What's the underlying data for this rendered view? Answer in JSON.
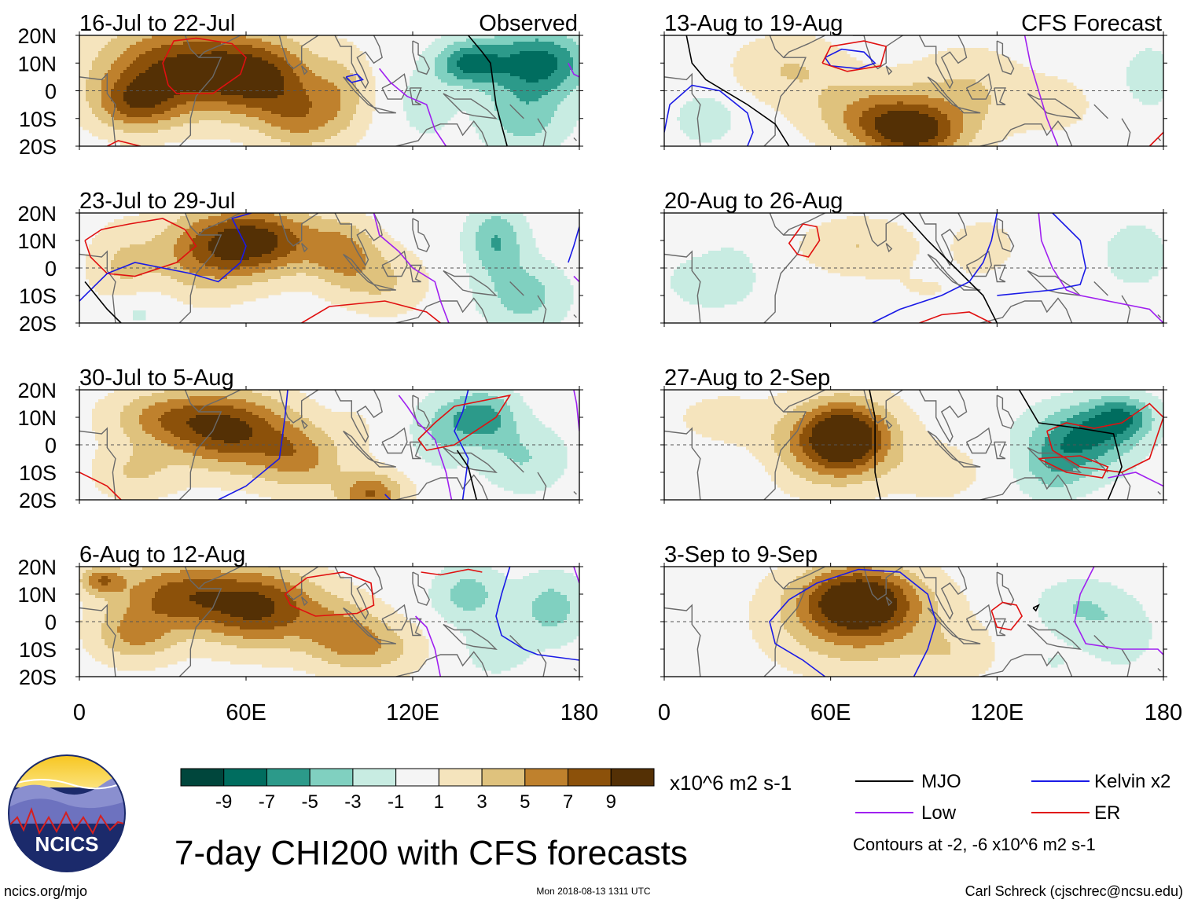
{
  "chart_data": {
    "type": "heatmap",
    "title": "7-day CHI200 with CFS forecasts",
    "units": "x10^6 m2 s-1",
    "x_axis": {
      "ticks": [
        "0",
        "60E",
        "120E",
        "180"
      ],
      "range": [
        0,
        180
      ]
    },
    "y_axis": {
      "ticks": [
        "20N",
        "10N",
        "0",
        "10S",
        "20S"
      ],
      "range": [
        -20,
        20
      ]
    },
    "colorbar": {
      "labels": [
        "-9",
        "-7",
        "-5",
        "-3",
        "-1",
        "1",
        "3",
        "5",
        "7",
        "9"
      ],
      "colors": [
        "#00463c",
        "#006d5f",
        "#2c9a8a",
        "#80d0c0",
        "#c8ece2",
        "#f5f5f5",
        "#f5e4bd",
        "#dfc27d",
        "#bf812d",
        "#8c510a",
        "#543005"
      ]
    },
    "panels": [
      {
        "title": "16-Jul to 22-Jul",
        "tag": "Observed",
        "blobs": [
          [
            35,
            8,
            28,
            16,
            9
          ],
          [
            65,
            5,
            20,
            14,
            8
          ],
          [
            20,
            -5,
            15,
            10,
            6
          ],
          [
            80,
            -10,
            15,
            12,
            5
          ],
          [
            95,
            0,
            10,
            15,
            3
          ],
          [
            125,
            -5,
            10,
            12,
            -2
          ],
          [
            140,
            10,
            12,
            8,
            -7
          ],
          [
            165,
            10,
            18,
            12,
            -8
          ],
          [
            160,
            -10,
            15,
            12,
            -4
          ]
        ]
      },
      {
        "title": "23-Jul to 29-Jul",
        "tag": "",
        "blobs": [
          [
            65,
            10,
            22,
            12,
            9
          ],
          [
            45,
            5,
            20,
            15,
            5
          ],
          [
            15,
            0,
            12,
            15,
            3
          ],
          [
            95,
            5,
            12,
            12,
            5
          ],
          [
            110,
            -5,
            15,
            12,
            3
          ],
          [
            150,
            10,
            10,
            12,
            -5
          ],
          [
            160,
            -10,
            15,
            12,
            -4
          ],
          [
            20,
            -15,
            12,
            8,
            -2
          ]
        ]
      },
      {
        "title": "30-Jul to 5-Aug",
        "tag": "",
        "blobs": [
          [
            55,
            5,
            22,
            14,
            9
          ],
          [
            30,
            10,
            20,
            10,
            5
          ],
          [
            80,
            -5,
            15,
            12,
            5
          ],
          [
            105,
            -18,
            12,
            8,
            7
          ],
          [
            20,
            -10,
            15,
            10,
            3
          ],
          [
            145,
            10,
            12,
            10,
            -6
          ],
          [
            130,
            5,
            10,
            12,
            -3
          ],
          [
            160,
            -5,
            15,
            12,
            -3
          ],
          [
            100,
            5,
            8,
            12,
            1
          ]
        ]
      },
      {
        "title": "6-Aug to 12-Aug",
        "tag": "",
        "blobs": [
          [
            65,
            5,
            22,
            14,
            9
          ],
          [
            35,
            10,
            22,
            12,
            7
          ],
          [
            20,
            -5,
            15,
            10,
            5
          ],
          [
            95,
            -5,
            15,
            12,
            5
          ],
          [
            110,
            -10,
            15,
            10,
            3
          ],
          [
            140,
            10,
            12,
            10,
            -4
          ],
          [
            170,
            5,
            12,
            12,
            -4
          ],
          [
            150,
            -10,
            12,
            10,
            -2
          ],
          [
            8,
            15,
            8,
            5,
            6
          ]
        ]
      },
      {
        "title": "13-Aug to 19-Aug",
        "tag": "CFS Forecast",
        "blobs": [
          [
            90,
            -15,
            18,
            10,
            9
          ],
          [
            75,
            -8,
            22,
            12,
            5
          ],
          [
            45,
            8,
            20,
            12,
            3
          ],
          [
            110,
            0,
            20,
            15,
            3
          ],
          [
            140,
            -5,
            15,
            10,
            2
          ],
          [
            15,
            -10,
            12,
            10,
            -2
          ],
          [
            175,
            5,
            10,
            12,
            -2
          ]
        ]
      },
      {
        "title": "20-Aug to 26-Aug",
        "tag": "",
        "blobs": [
          [
            70,
            8,
            20,
            10,
            3
          ],
          [
            115,
            8,
            12,
            10,
            2
          ],
          [
            15,
            -5,
            15,
            10,
            -2
          ],
          [
            170,
            5,
            10,
            10,
            -3
          ],
          [
            25,
            0,
            10,
            12,
            -1
          ],
          [
            95,
            -8,
            20,
            8,
            1
          ]
        ]
      },
      {
        "title": "27-Aug to 2-Sep",
        "tag": "",
        "blobs": [
          [
            65,
            3,
            15,
            12,
            9
          ],
          [
            60,
            0,
            25,
            16,
            5
          ],
          [
            20,
            10,
            15,
            8,
            2
          ],
          [
            100,
            -10,
            15,
            10,
            2
          ],
          [
            150,
            2,
            18,
            12,
            -7
          ],
          [
            165,
            10,
            12,
            8,
            -6
          ],
          [
            140,
            -10,
            12,
            10,
            -3
          ],
          [
            30,
            -10,
            10,
            8,
            -1
          ]
        ]
      },
      {
        "title": "3-Sep to 9-Sep",
        "tag": "",
        "blobs": [
          [
            70,
            8,
            20,
            12,
            9
          ],
          [
            70,
            0,
            30,
            18,
            5
          ],
          [
            105,
            -12,
            15,
            10,
            2
          ],
          [
            150,
            5,
            15,
            10,
            -3
          ],
          [
            165,
            -5,
            12,
            12,
            -2
          ],
          [
            140,
            -15,
            12,
            8,
            -1
          ]
        ]
      }
    ],
    "legend": {
      "entries": [
        {
          "label": "MJO",
          "color": "#000000"
        },
        {
          "label": "Kelvin x2",
          "color": "#1a1ae6"
        },
        {
          "label": "Low",
          "color": "#a020f0"
        },
        {
          "label": "ER",
          "color": "#e01010"
        }
      ],
      "note": "Contours at -2, -6 x10^6 m2 s-1"
    }
  },
  "footer": {
    "logo_text": "NCICS",
    "left": "ncics.org/mjo",
    "center": "Mon 2018-08-13 1311 UTC",
    "right": "Carl Schreck (cjschrec@ncsu.edu)"
  }
}
